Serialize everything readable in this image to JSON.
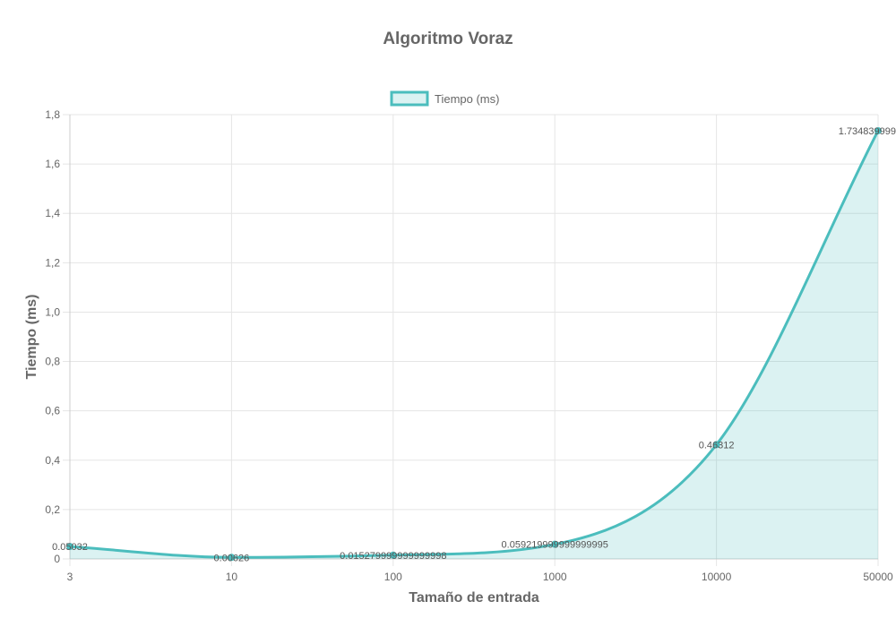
{
  "chart_data": {
    "type": "line",
    "title": "Algoritmo Voraz",
    "xlabel": "Tamaño de entrada",
    "ylabel": "Tiempo (ms)",
    "categories": [
      "3",
      "10",
      "100",
      "1000",
      "10000",
      "50000"
    ],
    "series": [
      {
        "name": "Tiempo (ms)",
        "values": [
          0.05032,
          0.00626,
          0.015279999999999998,
          0.059219999999999995,
          0.46312,
          1.734839999
        ],
        "data_labels": [
          "0.05032",
          "0.00626",
          "0.015279999999999998",
          "0.059219999999999995",
          "0.46312",
          "1.734839999"
        ]
      }
    ],
    "y_ticks": [
      "0",
      "0,2",
      "0,4",
      "0,6",
      "0,8",
      "1,0",
      "1,2",
      "1,4",
      "1,6",
      "1,8"
    ],
    "y_tick_values": [
      0,
      0.2,
      0.4,
      0.6,
      0.8,
      1.0,
      1.2,
      1.4,
      1.6,
      1.8
    ],
    "ylim": [
      0,
      1.8
    ],
    "extra_y_tick": {
      "label": "0",
      "value": 0
    },
    "grid": true,
    "fill_area": true,
    "legend_position": "top",
    "colors": {
      "line": "#4bbdbd",
      "fill": "rgba(75, 189, 189, 0.2)",
      "grid": "#e5e5e5",
      "text": "#666666"
    }
  }
}
